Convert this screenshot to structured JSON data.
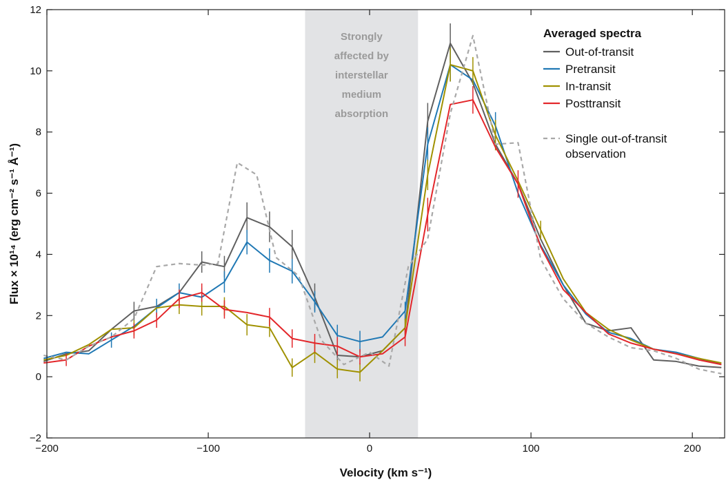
{
  "chart_data": {
    "type": "line",
    "xlabel": "Velocity (km s⁻¹)",
    "ylabel": "Flux × 10¹⁴ (erg cm⁻² s⁻¹ Å⁻¹)",
    "xlim": [
      -200,
      220
    ],
    "ylim": [
      -2,
      12
    ],
    "xticks": [
      -200,
      -100,
      0,
      100,
      200
    ],
    "xtick_labels": [
      "−200",
      "−100",
      "0",
      "100",
      "200"
    ],
    "yticks": [
      -2,
      0,
      2,
      4,
      6,
      8,
      10,
      12
    ],
    "ytick_labels": [
      "−2",
      "0",
      "2",
      "4",
      "6",
      "8",
      "10",
      "12"
    ],
    "grid": false,
    "legend_title": "Averaged spectra",
    "legend_position": "top-right",
    "shaded_region": {
      "x_range": [
        -40,
        30
      ],
      "color": "#e2e3e5",
      "label_lines": [
        "Strongly",
        "affected by",
        "interstellar",
        "medium",
        "absorption"
      ]
    },
    "series": [
      {
        "name": "Out-of-transit",
        "color": "#5f5f5f",
        "style": "solid",
        "x": [
          -202,
          -188,
          -174,
          -160,
          -146,
          -132,
          -118,
          -104,
          -90,
          -76,
          -62,
          -48,
          -34,
          -20,
          -6,
          8,
          22,
          36,
          50,
          64,
          78,
          92,
          106,
          120,
          134,
          148,
          162,
          176,
          190,
          204,
          218
        ],
        "y": [
          0.5,
          0.75,
          0.85,
          1.55,
          2.15,
          2.3,
          2.75,
          3.75,
          3.6,
          5.2,
          4.9,
          4.25,
          2.6,
          0.7,
          0.65,
          0.85,
          1.6,
          8.35,
          10.9,
          9.6,
          7.6,
          6.3,
          4.5,
          3.0,
          1.75,
          1.5,
          1.6,
          0.55,
          0.5,
          0.35,
          0.3
        ],
        "err_x": [
          -146,
          -104,
          -90,
          -76,
          -62,
          -48,
          -34,
          -20,
          22,
          36,
          50
        ],
        "err_y": [
          2.15,
          3.75,
          3.6,
          5.2,
          4.9,
          4.25,
          2.6,
          0.7,
          1.6,
          8.35,
          10.9
        ],
        "err_size": [
          0.3,
          0.35,
          0.35,
          0.5,
          0.5,
          0.55,
          0.45,
          0.25,
          0.3,
          0.6,
          0.65
        ]
      },
      {
        "name": "Pretransit",
        "color": "#1f78b4",
        "style": "solid",
        "x": [
          -202,
          -188,
          -174,
          -160,
          -146,
          -132,
          -118,
          -104,
          -90,
          -76,
          -62,
          -48,
          -34,
          -20,
          -6,
          8,
          22,
          36,
          50,
          64,
          78,
          92,
          106,
          120,
          134,
          148,
          162,
          176,
          190,
          204,
          218
        ],
        "y": [
          0.6,
          0.8,
          0.75,
          1.2,
          1.65,
          2.25,
          2.75,
          2.6,
          3.1,
          4.4,
          3.8,
          3.45,
          2.45,
          1.35,
          1.15,
          1.3,
          2.15,
          7.6,
          10.2,
          9.7,
          8.2,
          6.0,
          4.3,
          3.0,
          2.05,
          1.45,
          1.25,
          0.9,
          0.8,
          0.6,
          0.4
        ],
        "err_x": [
          -160,
          -132,
          -118,
          -104,
          -90,
          -76,
          -62,
          -48,
          -34,
          -20,
          -6,
          22,
          36,
          50,
          78
        ],
        "err_y": [
          1.2,
          2.25,
          2.75,
          2.6,
          3.1,
          4.4,
          3.8,
          3.45,
          2.45,
          1.35,
          1.15,
          2.15,
          7.6,
          10.2,
          8.2
        ],
        "err_size": [
          0.25,
          0.3,
          0.3,
          0.3,
          0.35,
          0.4,
          0.4,
          0.4,
          0.35,
          0.35,
          0.35,
          0.3,
          0.55,
          0.55,
          0.45
        ]
      },
      {
        "name": "In-transit",
        "color": "#a09100",
        "style": "solid",
        "x": [
          -202,
          -188,
          -174,
          -160,
          -146,
          -132,
          -118,
          -104,
          -90,
          -76,
          -62,
          -48,
          -34,
          -20,
          -6,
          8,
          22,
          36,
          50,
          64,
          78,
          92,
          106,
          120,
          134,
          148,
          162,
          176,
          190,
          204,
          218
        ],
        "y": [
          0.55,
          0.7,
          1.05,
          1.55,
          1.6,
          2.25,
          2.35,
          2.3,
          2.3,
          1.7,
          1.6,
          0.3,
          0.8,
          0.25,
          0.15,
          0.85,
          1.6,
          6.6,
          10.2,
          10.0,
          7.9,
          6.4,
          4.8,
          3.2,
          2.1,
          1.55,
          1.2,
          0.9,
          0.75,
          0.6,
          0.45
        ],
        "err_x": [
          -146,
          -118,
          -104,
          -90,
          -76,
          -62,
          -48,
          -34,
          -20,
          -6,
          22,
          36,
          50,
          64,
          78,
          106
        ],
        "err_y": [
          1.6,
          2.35,
          2.3,
          2.3,
          1.7,
          1.6,
          0.3,
          0.8,
          0.25,
          0.15,
          1.6,
          6.6,
          10.2,
          10.0,
          7.9,
          4.8
        ],
        "err_size": [
          0.25,
          0.3,
          0.3,
          0.3,
          0.35,
          0.3,
          0.3,
          0.35,
          0.3,
          0.3,
          0.3,
          0.5,
          0.55,
          0.45,
          0.5,
          0.3
        ]
      },
      {
        "name": "Posttransit",
        "color": "#e3262a",
        "style": "solid",
        "x": [
          -202,
          -188,
          -174,
          -160,
          -146,
          -132,
          -118,
          -104,
          -90,
          -76,
          -62,
          -48,
          -34,
          -20,
          -6,
          8,
          22,
          36,
          50,
          64,
          78,
          92,
          106,
          120,
          134,
          148,
          162,
          176,
          190,
          204,
          218
        ],
        "y": [
          0.45,
          0.55,
          1.0,
          1.3,
          1.5,
          1.85,
          2.55,
          2.75,
          2.2,
          2.1,
          1.95,
          1.25,
          1.1,
          1.0,
          0.65,
          0.75,
          1.3,
          5.3,
          8.9,
          9.05,
          7.5,
          6.3,
          4.25,
          2.85,
          2.1,
          1.4,
          1.1,
          0.9,
          0.75,
          0.55,
          0.4
        ],
        "err_x": [
          -188,
          -146,
          -132,
          -118,
          -104,
          -90,
          -62,
          -48,
          -34,
          -20,
          -6,
          22,
          36,
          64,
          92
        ],
        "err_y": [
          0.55,
          1.5,
          1.85,
          2.55,
          2.75,
          2.2,
          1.95,
          1.25,
          1.1,
          1.0,
          0.65,
          1.3,
          5.3,
          9.05,
          6.3
        ],
        "err_size": [
          0.2,
          0.25,
          0.25,
          0.3,
          0.3,
          0.3,
          0.3,
          0.3,
          0.3,
          0.3,
          0.25,
          0.3,
          0.55,
          0.45,
          0.45
        ]
      },
      {
        "name": "Single out-of-transit observation",
        "legend_lines": [
          "Single out-of-transit",
          "observation"
        ],
        "color": "#a8a8a8",
        "style": "dashed",
        "x": [
          -202,
          -188,
          -174,
          -160,
          -146,
          -132,
          -118,
          -104,
          -94,
          -82,
          -70,
          -58,
          -44,
          -30,
          -16,
          0,
          12,
          24,
          36,
          50,
          64,
          78,
          92,
          106,
          120,
          134,
          148,
          162,
          176,
          190,
          204,
          218
        ],
        "y": [
          0.7,
          0.55,
          1.0,
          1.3,
          1.9,
          3.6,
          3.7,
          3.65,
          3.7,
          7.0,
          6.6,
          3.9,
          3.3,
          1.2,
          0.4,
          0.8,
          0.35,
          3.6,
          4.5,
          8.6,
          11.15,
          7.6,
          7.65,
          3.85,
          2.55,
          1.75,
          1.3,
          0.95,
          0.85,
          0.6,
          0.25,
          0.1
        ]
      }
    ]
  }
}
